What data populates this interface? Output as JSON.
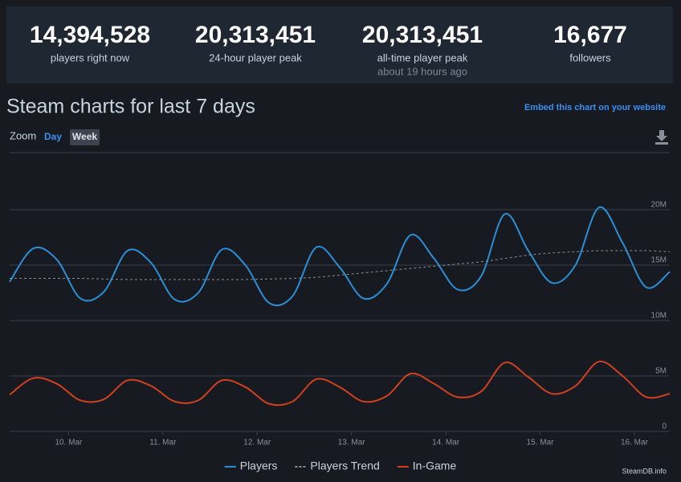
{
  "stats": [
    {
      "value": "14,394,528",
      "label": "players right now"
    },
    {
      "value": "20,313,451",
      "label": "24-hour player peak"
    },
    {
      "value": "20,313,451",
      "label": "all-time player peak",
      "note": "about 19 hours ago"
    },
    {
      "value": "16,677",
      "label": "followers"
    }
  ],
  "heading": "Steam charts for last 7 days",
  "embed_link": "Embed this chart on your website",
  "zoom": {
    "label": "Zoom",
    "options": [
      "Day",
      "Week"
    ]
  },
  "credit": "SteamDB.info",
  "chart_data": {
    "type": "line",
    "grid": true,
    "x": [
      9.375,
      9.625,
      9.875,
      10.125,
      10.375,
      10.625,
      10.875,
      11.125,
      11.375,
      11.625,
      11.875,
      12.125,
      12.375,
      12.625,
      12.875,
      13.125,
      13.375,
      13.625,
      13.875,
      14.125,
      14.375,
      14.625,
      14.875,
      15.125,
      15.375,
      15.625,
      15.875,
      16.125,
      16.375
    ],
    "xlim": [
      9.375,
      16.375
    ],
    "xticks": [
      {
        "value": 10,
        "label": "10. Mar"
      },
      {
        "value": 11,
        "label": "11. Mar"
      },
      {
        "value": 12,
        "label": "12. Mar"
      },
      {
        "value": 13,
        "label": "13. Mar"
      },
      {
        "value": 14,
        "label": "14. Mar"
      },
      {
        "value": 15,
        "label": "15. Mar"
      },
      {
        "value": 16,
        "label": "16. Mar"
      }
    ],
    "ylim": [
      0,
      25000000
    ],
    "yticks": [
      0,
      {
        "value": 5000000,
        "label": "5M"
      },
      {
        "value": 10000000,
        "label": "10M"
      },
      {
        "value": 15000000,
        "label": "15M"
      },
      {
        "value": 20000000,
        "label": "20M"
      }
    ],
    "series": [
      {
        "name": "Players",
        "color": "#2a8fd6",
        "dashed": false,
        "values": [
          13500000,
          16500000,
          15500000,
          12000000,
          12600000,
          16300000,
          15200000,
          11900000,
          12500000,
          16400000,
          15000000,
          11600000,
          12200000,
          16600000,
          14800000,
          12000000,
          13300000,
          17700000,
          15600000,
          12800000,
          14000000,
          19600000,
          16300000,
          13400000,
          15000000,
          20200000,
          17000000,
          13000000,
          14400000
        ]
      },
      {
        "name": "Players Trend",
        "color": "#8a8f96",
        "dashed": true,
        "values": [
          13800000,
          13800000,
          13800000,
          13800000,
          13750000,
          13700000,
          13700000,
          13700000,
          13700000,
          13700000,
          13700000,
          13750000,
          13800000,
          13900000,
          14100000,
          14300000,
          14500000,
          14700000,
          14900000,
          15100000,
          15300000,
          15600000,
          15900000,
          16100000,
          16200000,
          16300000,
          16300000,
          16300000,
          16200000
        ]
      },
      {
        "name": "In-Game",
        "color": "#d0401f",
        "dashed": false,
        "values": [
          3300000,
          4800000,
          4300000,
          2800000,
          2900000,
          4600000,
          4100000,
          2700000,
          2800000,
          4600000,
          4000000,
          2500000,
          2700000,
          4700000,
          4000000,
          2700000,
          3200000,
          5200000,
          4300000,
          3100000,
          3600000,
          6200000,
          4900000,
          3400000,
          4100000,
          6300000,
          5000000,
          3100000,
          3400000
        ]
      }
    ]
  }
}
